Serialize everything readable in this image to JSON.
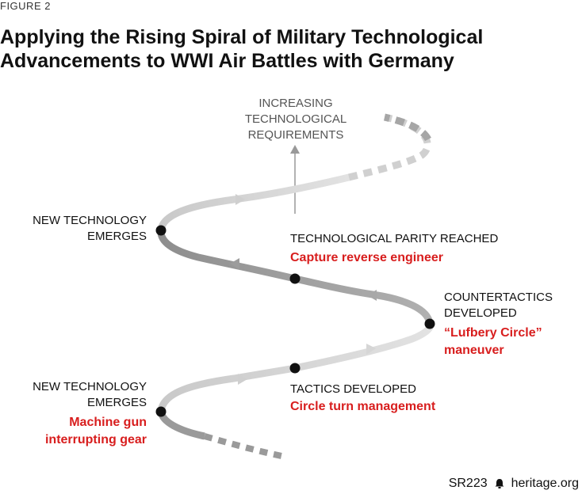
{
  "figure_label": "FIGURE 2",
  "title_line1": "Applying the Rising Spiral of Military Technological",
  "title_line2": "Advancements to WWI Air Battles with Germany",
  "axis_label": [
    "INCREASING",
    "TECHNOLOGICAL",
    "REQUIREMENTS"
  ],
  "stages": {
    "new_tech_top": [
      "NEW TECHNOLOGY",
      "EMERGES"
    ],
    "parity": "TECHNOLOGICAL PARITY REACHED",
    "parity_example": "Capture reverse engineer",
    "countertactics": [
      "COUNTERTACTICS",
      "DEVELOPED"
    ],
    "countertactics_example": [
      "“Lufbery Circle”",
      "maneuver"
    ],
    "tactics": "TACTICS DEVELOPED",
    "tactics_example": "Circle turn management",
    "new_tech_bottom": [
      "NEW TECHNOLOGY",
      "EMERGES"
    ],
    "new_tech_bottom_example": [
      "Machine gun",
      "interrupting gear"
    ]
  },
  "footer": {
    "report_id": "SR223",
    "source": "heritage.org",
    "icon": "bell-icon"
  },
  "colors": {
    "accent_red": "#d81e1e",
    "band_light": "#d0d0d0",
    "band_dark": "#9a9a9a",
    "dot": "#111111"
  }
}
